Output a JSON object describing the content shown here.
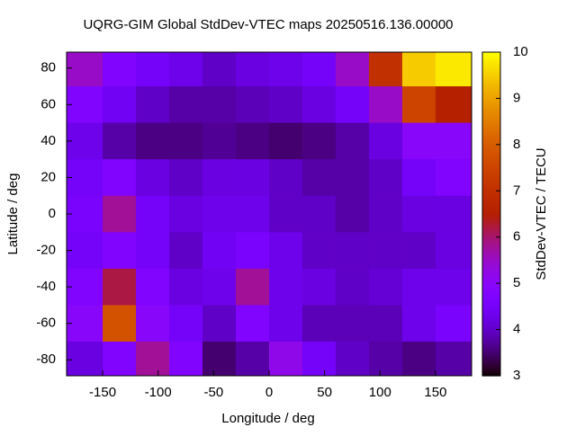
{
  "chart_data": {
    "type": "heatmap",
    "title": "UQRG-GIM Global StdDev-VTEC maps 20250516.136.00000",
    "x_label": "Longitude / deg",
    "y_label": "Latitude / deg",
    "colorbar_label": "StdDev-VTEC / TECU",
    "x": [
      -165,
      -135,
      -105,
      -75,
      -45,
      -15,
      15,
      45,
      75,
      105,
      135,
      165
    ],
    "y": [
      80,
      60,
      40,
      20,
      0,
      -20,
      -40,
      -60,
      -80
    ],
    "z": [
      [
        5.5,
        4.8,
        4.5,
        4.3,
        4.0,
        4.2,
        4.3,
        4.5,
        5.5,
        7.0,
        9.5,
        9.8
      ],
      [
        4.8,
        4.4,
        4.0,
        3.8,
        3.8,
        3.9,
        4.0,
        4.2,
        4.5,
        5.5,
        7.5,
        6.5
      ],
      [
        4.3,
        3.8,
        3.6,
        3.6,
        3.7,
        3.6,
        3.5,
        3.6,
        3.8,
        4.2,
        5.0,
        5.0
      ],
      [
        4.5,
        4.8,
        4.2,
        4.0,
        4.2,
        4.2,
        4.0,
        3.8,
        3.8,
        4.0,
        4.5,
        4.8
      ],
      [
        4.6,
        5.8,
        4.5,
        4.2,
        4.3,
        4.3,
        4.0,
        4.0,
        3.8,
        4.0,
        4.2,
        4.2
      ],
      [
        4.5,
        4.8,
        4.5,
        4.0,
        4.4,
        4.6,
        4.3,
        4.0,
        4.0,
        4.0,
        4.0,
        4.2
      ],
      [
        4.8,
        6.2,
        4.8,
        4.2,
        4.3,
        5.8,
        4.3,
        4.2,
        4.0,
        4.1,
        4.3,
        4.3
      ],
      [
        5.0,
        7.8,
        5.0,
        4.5,
        4.0,
        4.8,
        4.3,
        3.9,
        3.9,
        3.9,
        4.3,
        4.6
      ],
      [
        4.2,
        4.8,
        5.8,
        4.8,
        3.5,
        3.8,
        5.2,
        4.5,
        4.0,
        3.8,
        3.6,
        3.8
      ]
    ],
    "xlim": [
      -182.5,
      182.5
    ],
    "ylim": [
      -88.75,
      88.75
    ],
    "zlim": [
      3,
      10
    ],
    "xticks": [
      -150,
      -100,
      -50,
      0,
      50,
      100,
      150
    ],
    "yticks": [
      80,
      60,
      40,
      20,
      0,
      -20,
      -40,
      -60,
      -80
    ],
    "zticks": [
      3,
      4,
      5,
      6,
      7,
      8,
      9,
      10
    ]
  }
}
